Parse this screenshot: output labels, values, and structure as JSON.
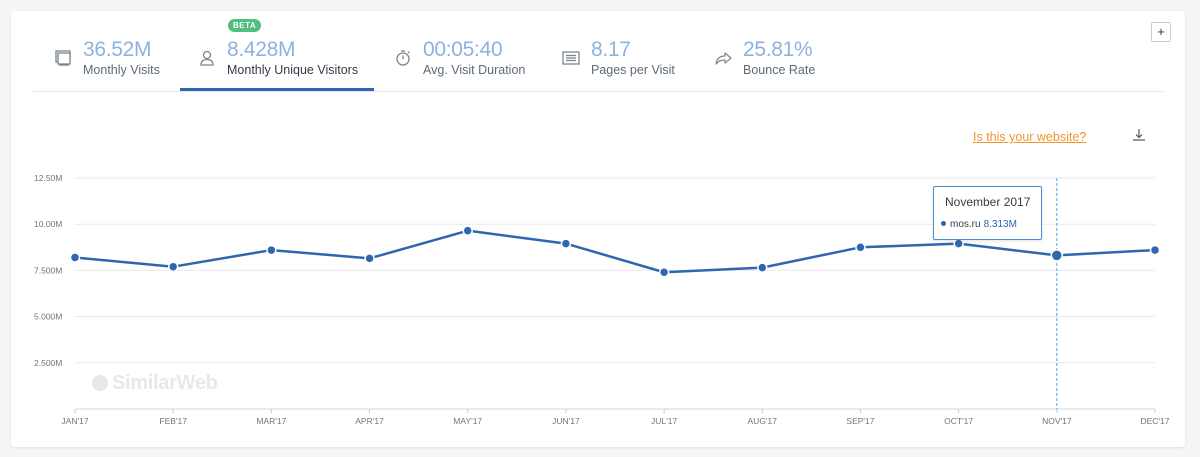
{
  "header": {
    "beta_badge": "BETA",
    "add_button": "+",
    "metrics": [
      {
        "value": "36.52M",
        "label": "Monthly Visits",
        "icon": "monitor-icon"
      },
      {
        "value": "8.428M",
        "label": "Monthly Unique Visitors",
        "icon": "user-icon"
      },
      {
        "value": "00:05:40",
        "label": "Avg. Visit Duration",
        "icon": "stopwatch-icon"
      },
      {
        "value": "8.17",
        "label": "Pages per Visit",
        "icon": "pages-icon"
      },
      {
        "value": "25.81%",
        "label": "Bounce Rate",
        "icon": "bounce-arrow-icon"
      }
    ]
  },
  "claim_link": "Is this your website?",
  "watermark": "SimilarWeb",
  "tooltip": {
    "title": "November 2017",
    "site": "mos.ru",
    "value": "8.313M"
  },
  "colors": {
    "line": "#2e66b0",
    "accent_orange": "#f0942f",
    "metric_value": "#8cb3de",
    "beta_green": "#4fc07b"
  },
  "chart_data": {
    "type": "line",
    "categories": [
      "JAN'17",
      "FEB'17",
      "MAR'17",
      "APR'17",
      "MAY'17",
      "JUN'17",
      "JUL'17",
      "AUG'17",
      "SEP'17",
      "OCT'17",
      "NOV'17",
      "DEC'17"
    ],
    "series": [
      {
        "name": "mos.ru",
        "values": [
          8.2,
          7.7,
          8.6,
          8.15,
          9.65,
          8.95,
          7.4,
          7.65,
          8.75,
          8.95,
          8.313,
          8.6
        ]
      }
    ],
    "y_ticks": [
      "2.500M",
      "5.000M",
      "7.500M",
      "10.00M",
      "12.50M"
    ],
    "y_tick_values": [
      2.5,
      5,
      7.5,
      10,
      12.5
    ],
    "ylim": [
      0,
      12.5
    ],
    "grid": true,
    "highlighted_category": "NOV'17"
  }
}
